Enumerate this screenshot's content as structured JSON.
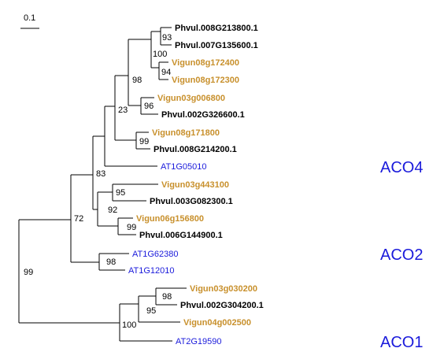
{
  "colors": {
    "vigna": "#c8902c",
    "phaseolus": "#000000",
    "arabidopsis": "#1a1adb",
    "group_label": "#1a1adb"
  },
  "scale_bar": {
    "label": "0.1"
  },
  "leaves": [
    {
      "id": "l1",
      "label": "Phvul.008G213800.1",
      "species": "phaseolus"
    },
    {
      "id": "l2",
      "label": "Phvul.007G135600.1",
      "species": "phaseolus"
    },
    {
      "id": "l3",
      "label": "Vigun08g172400",
      "species": "vigna"
    },
    {
      "id": "l4",
      "label": "Vigun08g172300",
      "species": "vigna"
    },
    {
      "id": "l5",
      "label": "Vigun03g006800",
      "species": "vigna"
    },
    {
      "id": "l6",
      "label": "Phvul.002G326600.1",
      "species": "phaseolus"
    },
    {
      "id": "l7",
      "label": "Vigun08g171800",
      "species": "vigna"
    },
    {
      "id": "l8",
      "label": "Phvul.008G214200.1",
      "species": "phaseolus"
    },
    {
      "id": "l9",
      "label": "AT1G05010",
      "species": "arabidopsis"
    },
    {
      "id": "l10",
      "label": "Vigun03g443100",
      "species": "vigna"
    },
    {
      "id": "l11",
      "label": "Phvul.003G082300.1",
      "species": "phaseolus"
    },
    {
      "id": "l12",
      "label": "Vigun06g156800",
      "species": "vigna"
    },
    {
      "id": "l13",
      "label": "Phvul.006G144900.1",
      "species": "phaseolus"
    },
    {
      "id": "l14",
      "label": "AT1G62380",
      "species": "arabidopsis"
    },
    {
      "id": "l15",
      "label": "AT1G12010",
      "species": "arabidopsis"
    },
    {
      "id": "l16",
      "label": "Vigun03g030200",
      "species": "vigna"
    },
    {
      "id": "l17",
      "label": "Phvul.002G304200.1",
      "species": "phaseolus"
    },
    {
      "id": "l18",
      "label": "Vigun04g002500",
      "species": "vigna"
    },
    {
      "id": "l19",
      "label": "AT2G19590",
      "species": "arabidopsis"
    }
  ],
  "support_values": {
    "n93": "93",
    "n100a": "100",
    "n94": "94",
    "n98a": "98",
    "n96": "96",
    "n23": "23",
    "n99a": "99",
    "n83": "83",
    "n95a": "95",
    "n92": "92",
    "n99b": "99",
    "n72": "72",
    "n98b": "98",
    "n99root": "99",
    "n98c": "98",
    "n95b": "95",
    "n100b": "100"
  },
  "groups": [
    {
      "id": "g1",
      "label": "ACO4"
    },
    {
      "id": "g2",
      "label": "ACO2"
    },
    {
      "id": "g3",
      "label": "ACO1"
    }
  ]
}
